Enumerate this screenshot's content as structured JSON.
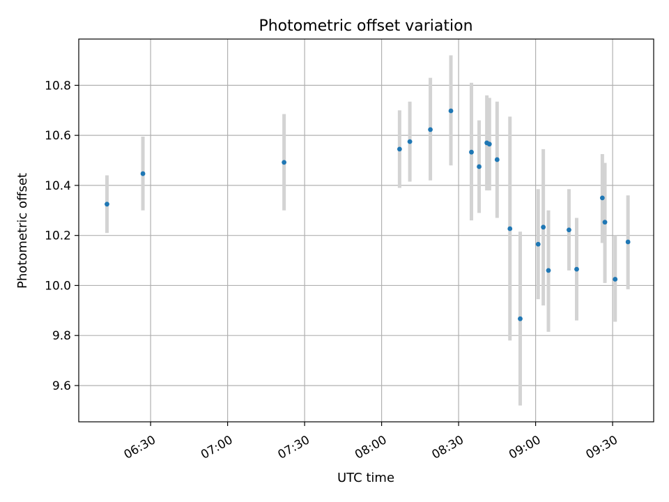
{
  "chart_data": {
    "type": "scatter",
    "title": "Photometric offset variation",
    "xlabel": "UTC time",
    "ylabel": "Photometric offset",
    "grid": true,
    "legend": "none",
    "xlim": [
      "06:02",
      "09:46"
    ],
    "ylim": [
      9.455,
      10.985
    ],
    "x_ticks": [
      "06:30",
      "07:00",
      "07:30",
      "08:00",
      "08:30",
      "09:00",
      "09:30"
    ],
    "y_ticks": [
      "9.6",
      "9.8",
      "10.0",
      "10.2",
      "10.4",
      "10.6",
      "10.8"
    ],
    "colors": {
      "point": "#1f77b4",
      "errorbar": "#d3d3d3",
      "grid": "#b0b0b0"
    },
    "series": [
      {
        "points": [
          {
            "x": "06:13",
            "y": 10.325,
            "yerr_low": 10.21,
            "yerr_high": 10.44
          },
          {
            "x": "06:27",
            "y": 10.447,
            "yerr_low": 10.3,
            "yerr_high": 10.595
          },
          {
            "x": "07:22",
            "y": 10.492,
            "yerr_low": 10.3,
            "yerr_high": 10.685
          },
          {
            "x": "08:07",
            "y": 10.545,
            "yerr_low": 10.39,
            "yerr_high": 10.7
          },
          {
            "x": "08:11",
            "y": 10.575,
            "yerr_low": 10.415,
            "yerr_high": 10.735
          },
          {
            "x": "08:19",
            "y": 10.623,
            "yerr_low": 10.42,
            "yerr_high": 10.83
          },
          {
            "x": "08:27",
            "y": 10.698,
            "yerr_low": 10.48,
            "yerr_high": 10.92
          },
          {
            "x": "08:35",
            "y": 10.533,
            "yerr_low": 10.26,
            "yerr_high": 10.81
          },
          {
            "x": "08:38",
            "y": 10.475,
            "yerr_low": 10.29,
            "yerr_high": 10.66
          },
          {
            "x": "08:41",
            "y": 10.57,
            "yerr_low": 10.38,
            "yerr_high": 10.76
          },
          {
            "x": "08:42",
            "y": 10.565,
            "yerr_low": 10.38,
            "yerr_high": 10.75
          },
          {
            "x": "08:45",
            "y": 10.503,
            "yerr_low": 10.27,
            "yerr_high": 10.735
          },
          {
            "x": "08:50",
            "y": 10.227,
            "yerr_low": 9.78,
            "yerr_high": 10.675
          },
          {
            "x": "08:54",
            "y": 9.867,
            "yerr_low": 9.52,
            "yerr_high": 10.215
          },
          {
            "x": "09:01",
            "y": 10.165,
            "yerr_low": 9.945,
            "yerr_high": 10.385
          },
          {
            "x": "09:03",
            "y": 10.233,
            "yerr_low": 9.92,
            "yerr_high": 10.545
          },
          {
            "x": "09:05",
            "y": 10.06,
            "yerr_low": 9.815,
            "yerr_high": 10.3
          },
          {
            "x": "09:13",
            "y": 10.222,
            "yerr_low": 10.06,
            "yerr_high": 10.385
          },
          {
            "x": "09:16",
            "y": 10.065,
            "yerr_low": 9.86,
            "yerr_high": 10.27
          },
          {
            "x": "09:26",
            "y": 10.35,
            "yerr_low": 10.17,
            "yerr_high": 10.525
          },
          {
            "x": "09:27",
            "y": 10.253,
            "yerr_low": 10.01,
            "yerr_high": 10.49
          },
          {
            "x": "09:31",
            "y": 10.025,
            "yerr_low": 9.855,
            "yerr_high": 10.2
          },
          {
            "x": "09:36",
            "y": 10.174,
            "yerr_low": 9.985,
            "yerr_high": 10.36
          }
        ]
      }
    ]
  }
}
